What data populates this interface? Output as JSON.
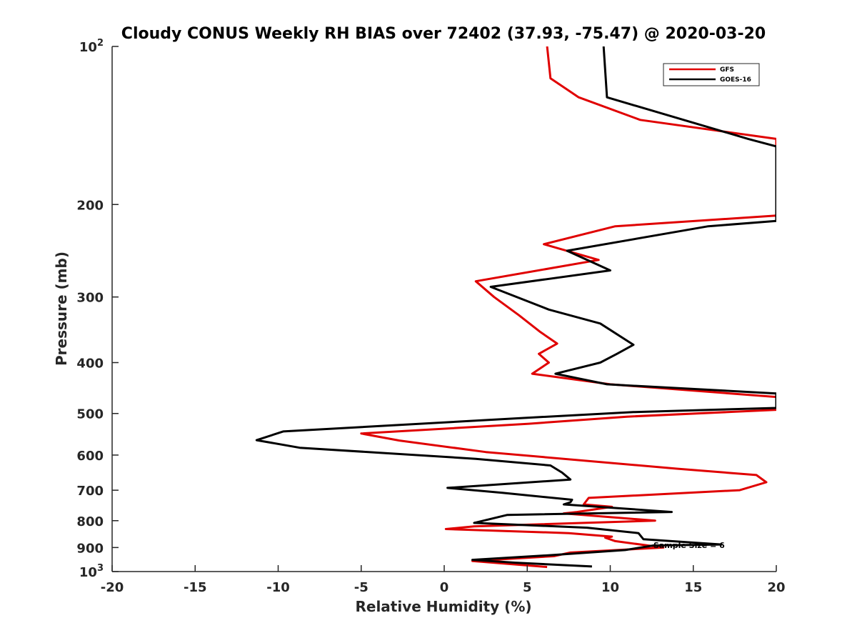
{
  "chart_data": {
    "type": "line",
    "title": "Cloudy CONUS Weekly RH BIAS over 72402 (37.93, -75.47) @ 2020-03-20",
    "xlabel": "Relative Humidity (%)",
    "ylabel": "Pressure (mb)",
    "xlim": [
      -20,
      20
    ],
    "ylim": [
      100,
      1000
    ],
    "y_scale": "log",
    "y_reversed": true,
    "grid": false,
    "legend_position": "top-right",
    "x_ticks": [
      "-20",
      "-15",
      "-10",
      "-5",
      "0",
      "5",
      "10",
      "15",
      "20"
    ],
    "y_ticks": [
      {
        "value": 100,
        "base": "10",
        "exp": "2"
      },
      {
        "value": 200,
        "label": "200"
      },
      {
        "value": 300,
        "label": "300"
      },
      {
        "value": 400,
        "label": "400"
      },
      {
        "value": 500,
        "label": "500"
      },
      {
        "value": 600,
        "label": "600"
      },
      {
        "value": 700,
        "label": "700"
      },
      {
        "value": 800,
        "label": "800"
      },
      {
        "value": 900,
        "label": "900"
      },
      {
        "value": 1000,
        "base": "10",
        "exp": "3"
      }
    ],
    "series": [
      {
        "name": "GFS",
        "color": "#e00000",
        "points": [
          [
            6.2,
            100
          ],
          [
            6.4,
            115
          ],
          [
            8.1,
            125
          ],
          [
            11.8,
            138
          ],
          [
            20,
            150
          ],
          [
            20,
            210
          ],
          [
            10.3,
            220
          ],
          [
            6.0,
            238
          ],
          [
            9.3,
            255
          ],
          [
            1.9,
            280
          ],
          [
            3.0,
            300
          ],
          [
            4.5,
            325
          ],
          [
            5.8,
            350
          ],
          [
            6.8,
            368
          ],
          [
            5.7,
            385
          ],
          [
            6.3,
            400
          ],
          [
            5.3,
            420
          ],
          [
            10.0,
            440
          ],
          [
            20,
            465
          ],
          [
            20,
            492
          ],
          [
            11,
            507
          ],
          [
            5.1,
            523
          ],
          [
            -5,
            546
          ],
          [
            -2.7,
            563
          ],
          [
            2.5,
            592
          ],
          [
            14,
            637
          ],
          [
            18.8,
            655
          ],
          [
            19.4,
            676
          ],
          [
            17.8,
            700
          ],
          [
            8.7,
            724
          ],
          [
            8.4,
            745
          ],
          [
            10.1,
            753
          ],
          [
            8,
            770
          ],
          [
            7.2,
            775
          ],
          [
            12.7,
            800
          ],
          [
            1.8,
            820
          ],
          [
            0.1,
            830
          ],
          [
            7.5,
            845
          ],
          [
            10.1,
            858
          ],
          [
            9.7,
            862
          ],
          [
            10.3,
            875
          ],
          [
            13.2,
            900
          ],
          [
            7.6,
            920
          ],
          [
            6.6,
            935
          ],
          [
            1.7,
            955
          ],
          [
            6.2,
            980
          ]
        ]
      },
      {
        "name": "GOES-16",
        "color": "#000000",
        "points": [
          [
            9.6,
            100
          ],
          [
            9.8,
            125
          ],
          [
            18.3,
            150
          ],
          [
            20,
            155
          ],
          [
            20,
            215
          ],
          [
            15.9,
            220
          ],
          [
            7.4,
            245
          ],
          [
            10.0,
            267
          ],
          [
            2.8,
            287
          ],
          [
            6.3,
            317
          ],
          [
            9.4,
            337
          ],
          [
            11.4,
            370
          ],
          [
            10.4,
            385
          ],
          [
            9.4,
            400
          ],
          [
            6.7,
            420
          ],
          [
            9.8,
            440
          ],
          [
            20,
            458
          ],
          [
            20,
            488
          ],
          [
            11.4,
            497
          ],
          [
            4.7,
            510
          ],
          [
            -9.7,
            541
          ],
          [
            -11.3,
            562
          ],
          [
            -8.7,
            581
          ],
          [
            1.9,
            610
          ],
          [
            6.4,
            628
          ],
          [
            7.1,
            648
          ],
          [
            7.6,
            668
          ],
          [
            0.2,
            693
          ],
          [
            3.5,
            708
          ],
          [
            7.7,
            730
          ],
          [
            7.6,
            738
          ],
          [
            7.2,
            745
          ],
          [
            13.7,
            770
          ],
          [
            3.8,
            780
          ],
          [
            1.8,
            808
          ],
          [
            8.6,
            825
          ],
          [
            11.7,
            845
          ],
          [
            12.0,
            868
          ],
          [
            16.7,
            888
          ],
          [
            12.6,
            892
          ],
          [
            10.9,
            910
          ],
          [
            6.6,
            930
          ],
          [
            1.7,
            950
          ],
          [
            4.3,
            962
          ],
          [
            8.9,
            978
          ]
        ]
      }
    ],
    "annotations": [
      {
        "text": "Sample Size = 6",
        "x": 12.6,
        "y": 890
      }
    ]
  }
}
